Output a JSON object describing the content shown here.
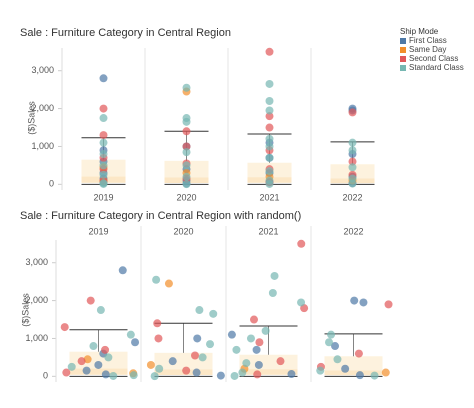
{
  "chart_data": [
    {
      "type": "box",
      "title": "Sale :  Furniture Category in Central Region",
      "y_label": "($)Sales",
      "categories": [
        "2019",
        "2020",
        "2021",
        "2022"
      ],
      "ylim": [
        -150,
        3600
      ],
      "yticks": [
        0,
        {
          "value": 1000,
          "label": "1,000"
        },
        {
          "value": 2000,
          "label": "2,000"
        },
        {
          "value": 3000,
          "label": "3,000"
        }
      ],
      "legend_title": "Ship Mode",
      "boxes": [
        {
          "whisker_low": 0,
          "q1": 40,
          "median": 210,
          "q3": 650,
          "whisker_high": 1230
        },
        {
          "whisker_low": 0,
          "q1": 35,
          "median": 180,
          "q3": 620,
          "whisker_high": 1400
        },
        {
          "whisker_low": 0,
          "q1": 40,
          "median": 190,
          "q3": 570,
          "whisker_high": 1330
        },
        {
          "whisker_low": 0,
          "q1": 30,
          "median": 160,
          "q3": 530,
          "whisker_high": 1120
        }
      ],
      "series": [
        {
          "name": "First Class",
          "color": "#4e79a7",
          "x": [
            "2019",
            "2019",
            "2019",
            "2019",
            "2019",
            "2019",
            "2020",
            "2020",
            "2020",
            "2020",
            "2021",
            "2021",
            "2021",
            "2021",
            "2022",
            "2022",
            "2022",
            "2022",
            "2022"
          ],
          "values": [
            2800,
            900,
            600,
            300,
            150,
            50,
            1000,
            400,
            100,
            20,
            1100,
            700,
            300,
            60,
            2000,
            1950,
            800,
            200,
            30
          ]
        },
        {
          "name": "Same Day",
          "color": "#f28e2b",
          "x": [
            "2019",
            "2019",
            "2020",
            "2020",
            "2021",
            "2022"
          ],
          "values": [
            450,
            80,
            2450,
            300,
            200,
            100
          ]
        },
        {
          "name": "Second Class",
          "color": "#e15759",
          "x": [
            "2019",
            "2019",
            "2019",
            "2019",
            "2019",
            "2020",
            "2020",
            "2020",
            "2020",
            "2021",
            "2021",
            "2021",
            "2021",
            "2021",
            "2021",
            "2022",
            "2022",
            "2022"
          ],
          "values": [
            2000,
            1300,
            700,
            400,
            100,
            1400,
            1000,
            550,
            150,
            3500,
            1800,
            1500,
            900,
            400,
            50,
            1900,
            600,
            250
          ]
        },
        {
          "name": "Standard Class",
          "color": "#76b7b2",
          "x": [
            "2019",
            "2019",
            "2019",
            "2019",
            "2019",
            "2019",
            "2019",
            "2020",
            "2020",
            "2020",
            "2020",
            "2020",
            "2020",
            "2020",
            "2021",
            "2021",
            "2021",
            "2021",
            "2021",
            "2021",
            "2021",
            "2021",
            "2021",
            "2022",
            "2022",
            "2022",
            "2022",
            "2022"
          ],
          "values": [
            1750,
            1100,
            800,
            500,
            250,
            10,
            30,
            2550,
            1750,
            1650,
            850,
            500,
            200,
            5,
            2650,
            2200,
            1950,
            1200,
            1000,
            700,
            350,
            100,
            10,
            1100,
            900,
            450,
            150,
            20
          ]
        }
      ]
    },
    {
      "type": "jitter",
      "title": "Sale :  Furniture Category in Central Region with random()",
      "y_label": "($)Sales",
      "ylim": [
        -150,
        3600
      ],
      "yticks": [
        0,
        {
          "value": 1000,
          "label": "1,000"
        },
        {
          "value": 2000,
          "label": "2,000"
        },
        {
          "value": 3000,
          "label": "3,000"
        }
      ]
    }
  ]
}
